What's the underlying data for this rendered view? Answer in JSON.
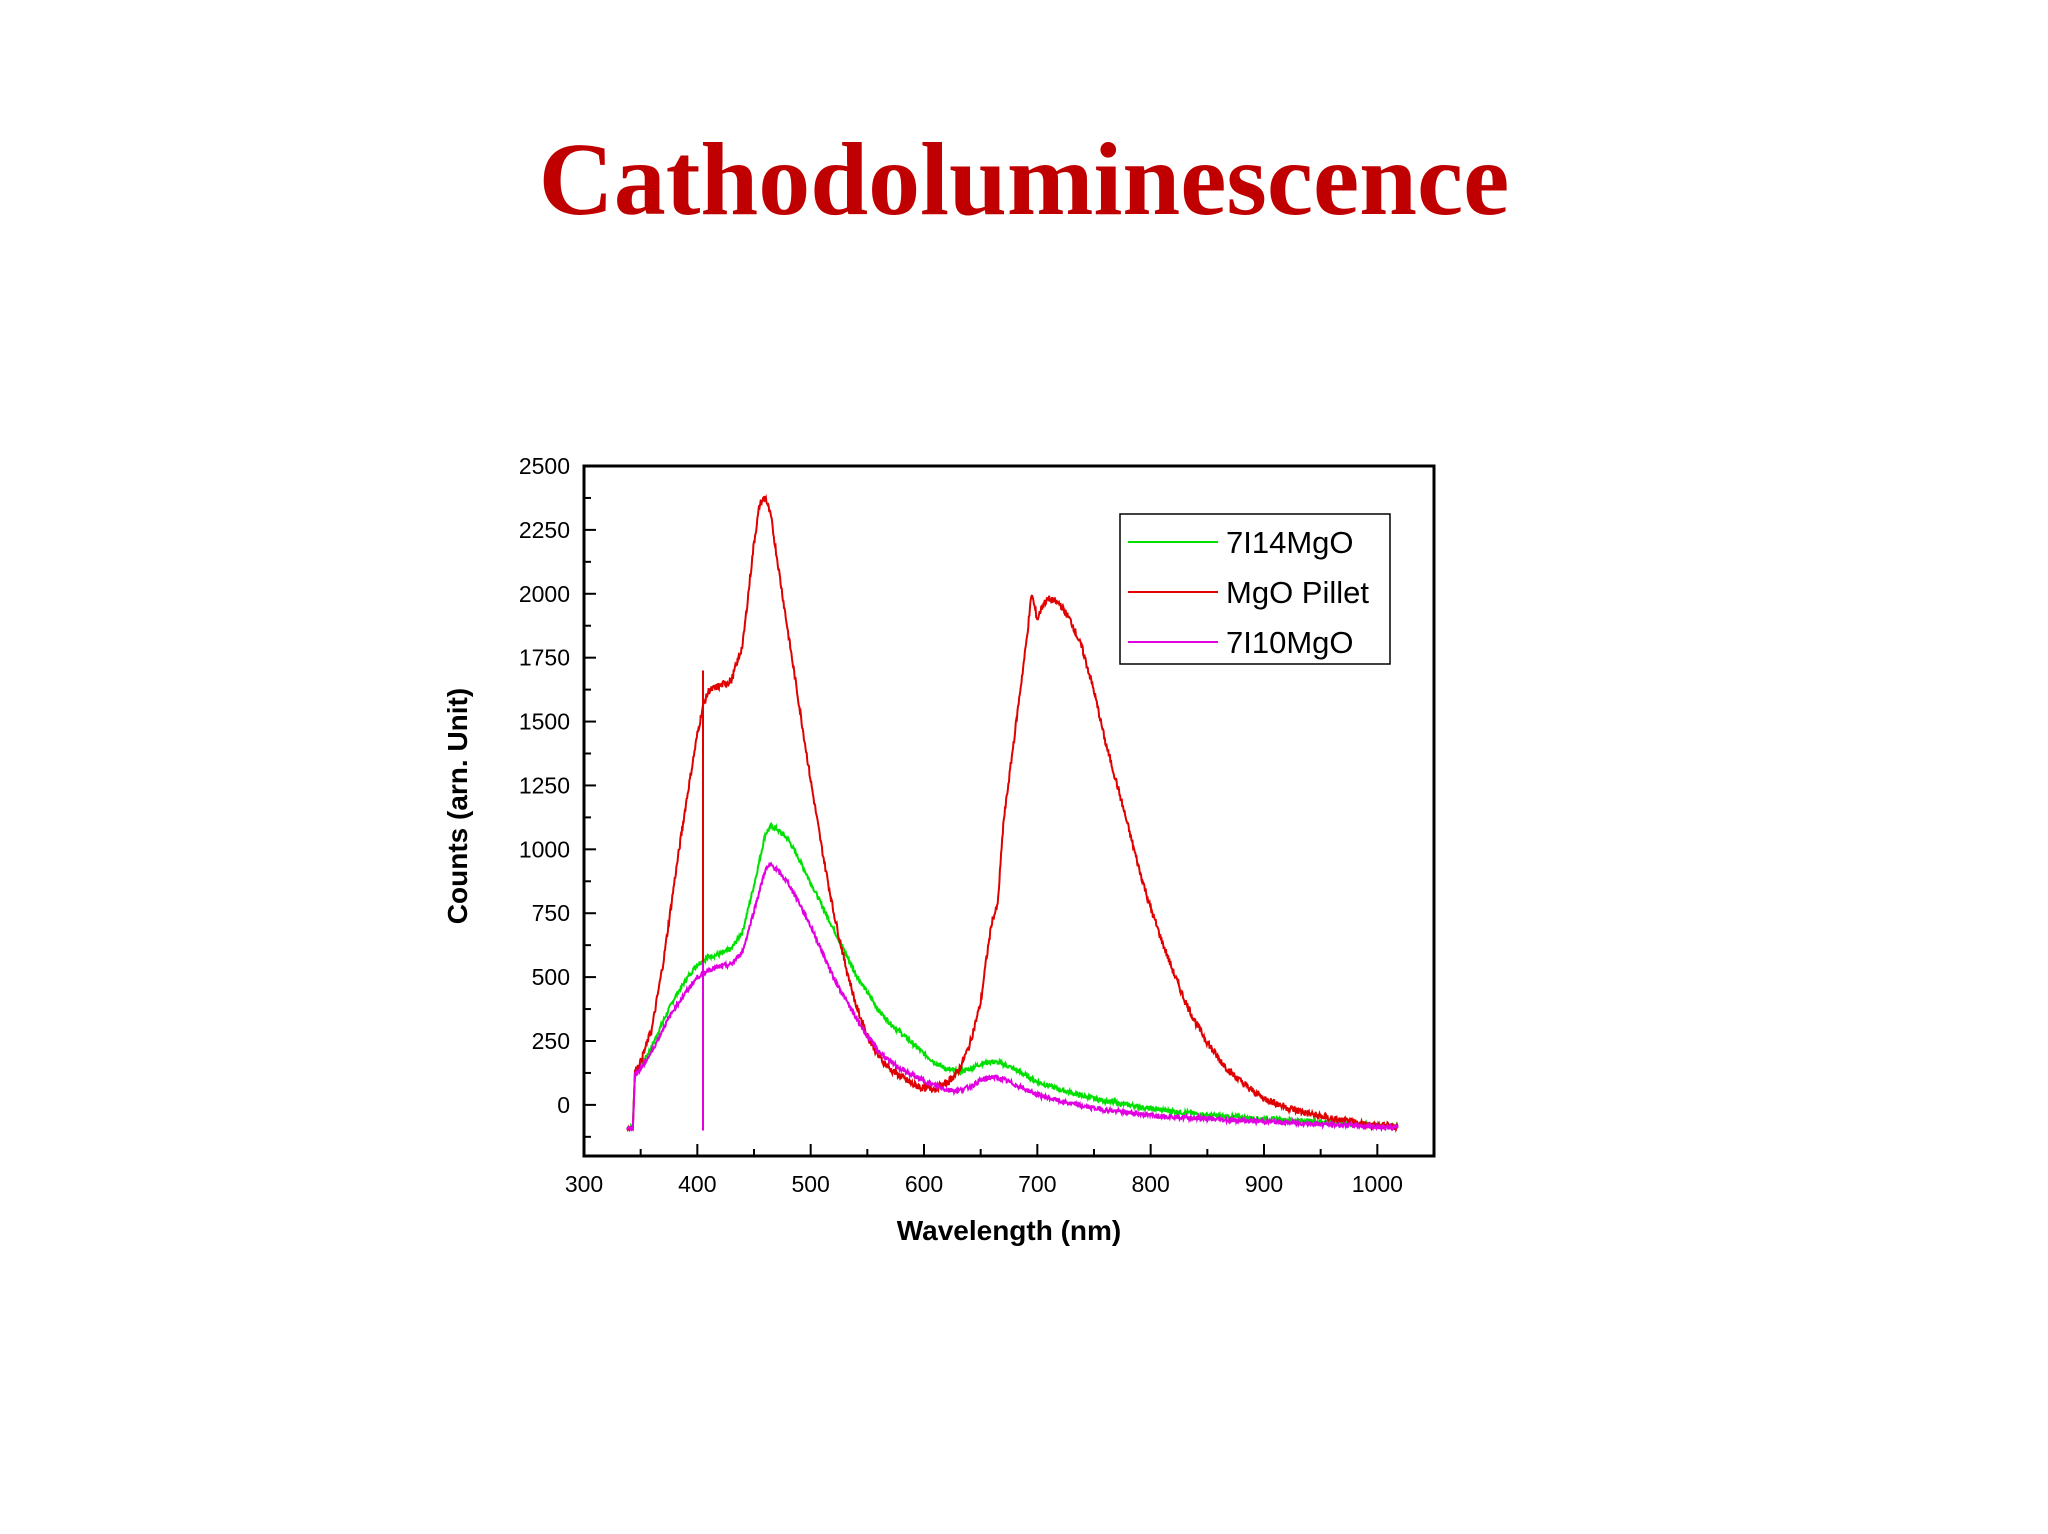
{
  "slide": {
    "title": "Cathodoluminescence"
  },
  "chart_data": {
    "type": "line",
    "title": "",
    "xlabel": "Wavelength (nm)",
    "ylabel": "Counts (arn. Unit)",
    "xlim": [
      300,
      1050
    ],
    "ylim": [
      -200,
      2500
    ],
    "x_ticks": [
      300,
      400,
      500,
      600,
      700,
      800,
      900,
      1000
    ],
    "y_ticks": [
      0,
      250,
      500,
      750,
      1000,
      1250,
      1500,
      1750,
      2000,
      2250,
      2500
    ],
    "grid": false,
    "legend_position": "top-right",
    "series": [
      {
        "name": "7I14MgO",
        "color": "#00e000",
        "points": [
          [
            338,
            -90
          ],
          [
            343,
            -90
          ],
          [
            345,
            130
          ],
          [
            350,
            150
          ],
          [
            360,
            230
          ],
          [
            370,
            330
          ],
          [
            380,
            420
          ],
          [
            390,
            490
          ],
          [
            400,
            550
          ],
          [
            410,
            580
          ],
          [
            420,
            590
          ],
          [
            430,
            610
          ],
          [
            440,
            680
          ],
          [
            450,
            860
          ],
          [
            460,
            1060
          ],
          [
            465,
            1090
          ],
          [
            470,
            1080
          ],
          [
            480,
            1040
          ],
          [
            490,
            960
          ],
          [
            500,
            870
          ],
          [
            510,
            780
          ],
          [
            520,
            690
          ],
          [
            530,
            600
          ],
          [
            540,
            510
          ],
          [
            550,
            440
          ],
          [
            560,
            370
          ],
          [
            570,
            320
          ],
          [
            580,
            280
          ],
          [
            590,
            240
          ],
          [
            600,
            200
          ],
          [
            610,
            165
          ],
          [
            620,
            140
          ],
          [
            630,
            130
          ],
          [
            640,
            140
          ],
          [
            650,
            160
          ],
          [
            660,
            170
          ],
          [
            670,
            160
          ],
          [
            680,
            140
          ],
          [
            690,
            115
          ],
          [
            700,
            90
          ],
          [
            720,
            60
          ],
          [
            740,
            35
          ],
          [
            760,
            15
          ],
          [
            780,
            0
          ],
          [
            800,
            -15
          ],
          [
            850,
            -40
          ],
          [
            900,
            -55
          ],
          [
            950,
            -65
          ],
          [
            1000,
            -80
          ],
          [
            1018,
            -85
          ]
        ]
      },
      {
        "name": "MgO Pillet",
        "color": "#e00000",
        "points": [
          [
            338,
            -90
          ],
          [
            343,
            -90
          ],
          [
            345,
            130
          ],
          [
            350,
            170
          ],
          [
            360,
            300
          ],
          [
            370,
            560
          ],
          [
            380,
            880
          ],
          [
            390,
            1180
          ],
          [
            400,
            1450
          ],
          [
            405,
            1560
          ],
          [
            410,
            1620
          ],
          [
            420,
            1640
          ],
          [
            430,
            1660
          ],
          [
            440,
            1800
          ],
          [
            450,
            2200
          ],
          [
            455,
            2350
          ],
          [
            460,
            2380
          ],
          [
            465,
            2300
          ],
          [
            470,
            2150
          ],
          [
            480,
            1850
          ],
          [
            490,
            1560
          ],
          [
            500,
            1270
          ],
          [
            510,
            1000
          ],
          [
            520,
            760
          ],
          [
            530,
            560
          ],
          [
            540,
            390
          ],
          [
            550,
            270
          ],
          [
            560,
            190
          ],
          [
            570,
            140
          ],
          [
            580,
            110
          ],
          [
            590,
            80
          ],
          [
            600,
            65
          ],
          [
            610,
            65
          ],
          [
            620,
            85
          ],
          [
            630,
            130
          ],
          [
            640,
            230
          ],
          [
            650,
            400
          ],
          [
            655,
            570
          ],
          [
            660,
            720
          ],
          [
            665,
            780
          ],
          [
            670,
            1100
          ],
          [
            680,
            1450
          ],
          [
            690,
            1800
          ],
          [
            695,
            2000
          ],
          [
            700,
            1900
          ],
          [
            705,
            1960
          ],
          [
            710,
            1980
          ],
          [
            720,
            1960
          ],
          [
            730,
            1890
          ],
          [
            740,
            1780
          ],
          [
            750,
            1620
          ],
          [
            760,
            1420
          ],
          [
            770,
            1260
          ],
          [
            780,
            1090
          ],
          [
            790,
            920
          ],
          [
            800,
            770
          ],
          [
            810,
            640
          ],
          [
            820,
            520
          ],
          [
            830,
            410
          ],
          [
            840,
            320
          ],
          [
            850,
            245
          ],
          [
            860,
            180
          ],
          [
            870,
            130
          ],
          [
            880,
            90
          ],
          [
            890,
            55
          ],
          [
            900,
            25
          ],
          [
            920,
            -10
          ],
          [
            940,
            -35
          ],
          [
            960,
            -55
          ],
          [
            980,
            -70
          ],
          [
            1000,
            -80
          ],
          [
            1018,
            -85
          ]
        ]
      },
      {
        "name": "7I10MgO",
        "color": "#e000e0",
        "points": [
          [
            338,
            -90
          ],
          [
            343,
            -90
          ],
          [
            345,
            120
          ],
          [
            350,
            140
          ],
          [
            360,
            210
          ],
          [
            370,
            300
          ],
          [
            380,
            380
          ],
          [
            390,
            440
          ],
          [
            400,
            500
          ],
          [
            410,
            530
          ],
          [
            420,
            540
          ],
          [
            430,
            550
          ],
          [
            440,
            600
          ],
          [
            450,
            760
          ],
          [
            460,
            920
          ],
          [
            465,
            940
          ],
          [
            470,
            920
          ],
          [
            480,
            870
          ],
          [
            490,
            790
          ],
          [
            500,
            700
          ],
          [
            510,
            600
          ],
          [
            520,
            500
          ],
          [
            530,
            420
          ],
          [
            540,
            340
          ],
          [
            550,
            270
          ],
          [
            560,
            210
          ],
          [
            570,
            170
          ],
          [
            580,
            140
          ],
          [
            590,
            115
          ],
          [
            600,
            95
          ],
          [
            610,
            75
          ],
          [
            620,
            60
          ],
          [
            630,
            55
          ],
          [
            640,
            70
          ],
          [
            650,
            95
          ],
          [
            660,
            110
          ],
          [
            670,
            100
          ],
          [
            680,
            80
          ],
          [
            690,
            60
          ],
          [
            700,
            40
          ],
          [
            720,
            15
          ],
          [
            740,
            -5
          ],
          [
            760,
            -20
          ],
          [
            780,
            -30
          ],
          [
            800,
            -40
          ],
          [
            850,
            -55
          ],
          [
            900,
            -65
          ],
          [
            950,
            -75
          ],
          [
            1000,
            -85
          ],
          [
            1018,
            -90
          ]
        ]
      }
    ]
  }
}
